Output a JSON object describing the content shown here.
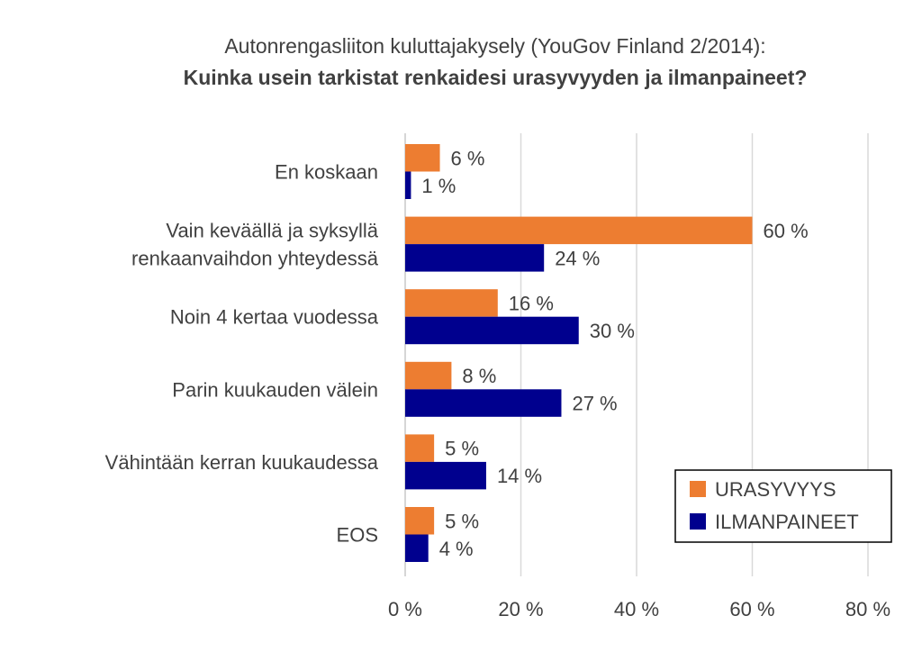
{
  "chart_data": {
    "type": "bar",
    "orientation": "horizontal",
    "title": "Autonrengasliiton kuluttajakysely (YouGov Finland 2/2014):",
    "subtitle": "Kuinka usein tarkistat renkaidesi urasyvyyden ja ilmanpaineet?",
    "categories": [
      [
        "En koskaan"
      ],
      [
        "Vain keväällä ja syksyllä",
        "renkaanvaihdon yhteydessä"
      ],
      [
        "Noin 4 kertaa vuodessa"
      ],
      [
        "Parin kuukauden välein"
      ],
      [
        "Vähintään kerran kuukaudessa"
      ],
      [
        "EOS"
      ]
    ],
    "series": [
      {
        "name": "URASYVYYS",
        "color": "#ED7D31",
        "values": [
          6,
          60,
          16,
          8,
          5,
          5
        ]
      },
      {
        "name": "ILMANPAINEET",
        "color": "#00008E",
        "values": [
          1,
          24,
          30,
          27,
          14,
          4
        ]
      }
    ],
    "value_suffix": " %",
    "xlim": [
      0,
      80
    ],
    "xticks": [
      0,
      20,
      40,
      60,
      80
    ],
    "xtick_labels": [
      "0 %",
      "20 %",
      "40 %",
      "60 %",
      "80 %"
    ],
    "grid": true,
    "legend_placement": "bottom-right"
  }
}
